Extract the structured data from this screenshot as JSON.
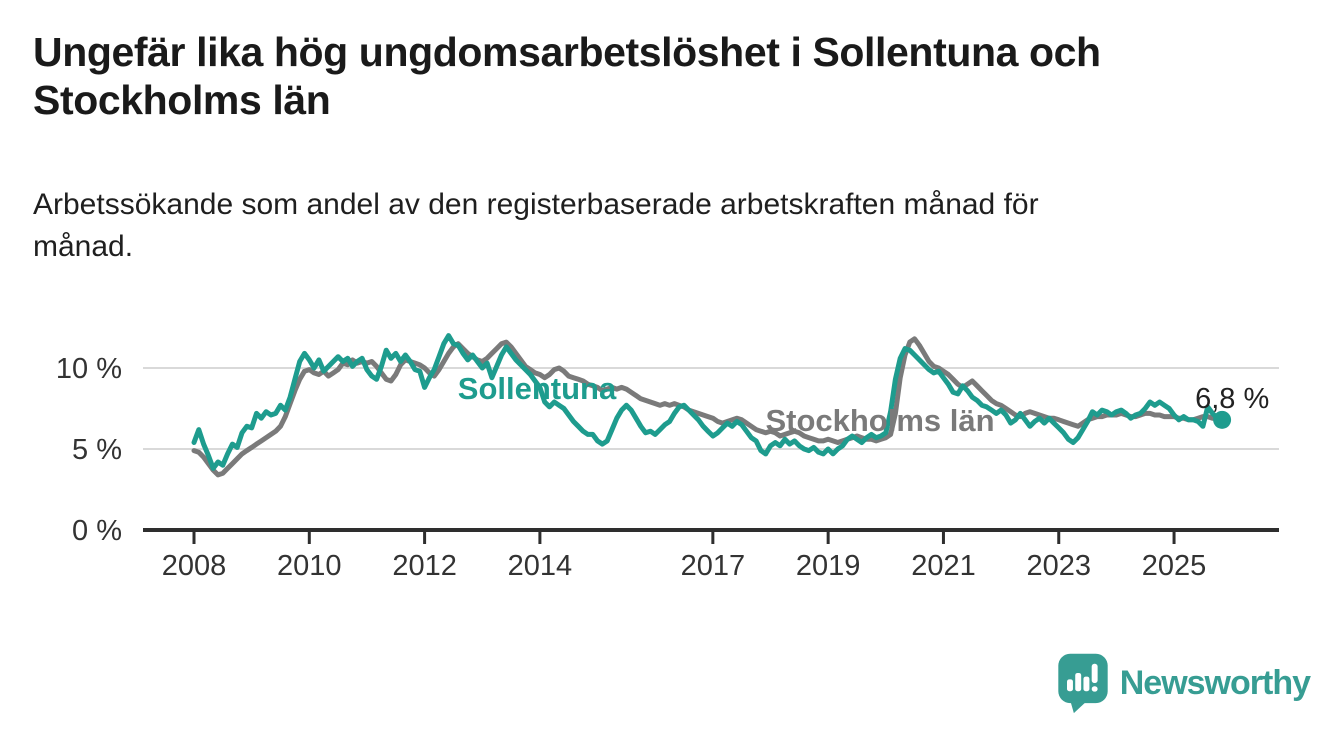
{
  "header": {
    "title": "Ungefär lika hög ungdomsarbetslöshet i Sollentuna och Stockholms län",
    "title_lines": [
      "Ungefär lika hög ungdomsarbetslöshet i Sollentuna och",
      "Stockholms län"
    ],
    "subtitle": "Arbetssökande som andel av den registerbaserade arbetskraften månad för månad.",
    "subtitle_lines": [
      "Arbetssökande som andel av den registerbaserade arbetskraften månad för",
      "månad."
    ]
  },
  "footer": {
    "brand": "Newsworthy"
  },
  "colors": {
    "ink": "#1a1a1a",
    "teal": "#1e9c8e",
    "gray": "#7a7a7a",
    "grid": "#d9d9d9",
    "axis": "#2e2e2e",
    "tick_text": "#333333",
    "annotation_text": "#222222",
    "logo_teal": "#379d93"
  },
  "chart_data": {
    "type": "line",
    "unit": "%",
    "frequency": "monthly",
    "start": "2008-01",
    "end": "2025-11",
    "ylim": [
      0,
      12.5
    ],
    "grid": "horizontal-only",
    "legend_position": "inline-labels",
    "y_ticks": [
      {
        "label": "0 %",
        "value": 0
      },
      {
        "label": "5 %",
        "value": 5
      },
      {
        "label": "10 %",
        "value": 10
      }
    ],
    "x_ticks": [
      "2008",
      "2010",
      "2012",
      "2014",
      "2017",
      "2019",
      "2021",
      "2023",
      "2025"
    ],
    "end_annotation": {
      "label": "6,8 %",
      "value": 6.8,
      "series": "Sollentuna"
    },
    "series": [
      {
        "name": "Sollentuna",
        "color_key": "teal",
        "values": [
          5.4,
          6.2,
          5.3,
          4.6,
          3.8,
          4.2,
          4.0,
          4.7,
          5.3,
          5.1,
          6.0,
          6.4,
          6.3,
          7.2,
          6.9,
          7.3,
          7.1,
          7.2,
          7.7,
          7.4,
          8.2,
          9.3,
          10.4,
          10.9,
          10.5,
          10.0,
          10.5,
          9.8,
          10.1,
          10.4,
          10.7,
          10.4,
          10.6,
          10.1,
          10.4,
          10.6,
          9.9,
          9.5,
          9.3,
          10.1,
          11.1,
          10.6,
          10.9,
          10.4,
          10.8,
          10.4,
          9.9,
          9.8,
          8.8,
          9.4,
          9.9,
          10.7,
          11.5,
          12.0,
          11.5,
          11.4,
          10.9,
          10.5,
          10.8,
          10.4,
          10.0,
          10.3,
          9.4,
          10.1,
          10.8,
          11.3,
          10.9,
          10.5,
          10.2,
          9.9,
          9.6,
          9.2,
          8.8,
          7.9,
          7.6,
          7.9,
          7.7,
          7.5,
          7.1,
          6.7,
          6.4,
          6.1,
          5.9,
          5.9,
          5.5,
          5.3,
          5.5,
          6.2,
          6.9,
          7.4,
          7.7,
          7.4,
          6.9,
          6.4,
          6.0,
          6.1,
          5.9,
          6.2,
          6.5,
          6.7,
          7.2,
          7.6,
          7.7,
          7.4,
          7.1,
          6.8,
          6.4,
          6.1,
          5.8,
          6.0,
          6.3,
          6.6,
          6.4,
          6.7,
          6.5,
          6.1,
          5.7,
          5.5,
          4.9,
          4.7,
          5.2,
          5.4,
          5.2,
          5.6,
          5.3,
          5.5,
          5.2,
          5.0,
          4.9,
          5.1,
          4.8,
          4.7,
          5.0,
          4.7,
          5.0,
          5.2,
          5.6,
          5.8,
          5.6,
          5.4,
          5.7,
          5.9,
          5.7,
          5.8,
          6.0,
          7.3,
          9.3,
          10.6,
          11.2,
          11.1,
          10.8,
          10.5,
          10.2,
          9.9,
          9.7,
          9.8,
          9.4,
          9.0,
          8.5,
          8.4,
          8.9,
          8.6,
          8.2,
          8.0,
          7.7,
          7.6,
          7.4,
          7.2,
          7.4,
          7.1,
          6.6,
          6.8,
          7.2,
          6.8,
          6.4,
          6.7,
          6.9,
          6.6,
          6.9,
          6.6,
          6.3,
          6.0,
          5.6,
          5.4,
          5.7,
          6.2,
          6.7,
          7.3,
          7.1,
          7.4,
          7.3,
          7.1,
          7.3,
          7.4,
          7.2,
          6.9,
          7.1,
          7.2,
          7.5,
          7.9,
          7.7,
          7.9,
          7.7,
          7.5,
          7.1,
          6.8,
          7.0,
          6.8,
          6.8,
          6.7,
          6.4,
          7.6,
          7.2,
          6.9,
          6.8
        ]
      },
      {
        "name": "Stockholms län",
        "color_key": "gray",
        "values": [
          4.9,
          4.8,
          4.5,
          4.1,
          3.7,
          3.4,
          3.5,
          3.8,
          4.1,
          4.4,
          4.7,
          4.9,
          5.1,
          5.3,
          5.5,
          5.7,
          5.9,
          6.1,
          6.4,
          7.0,
          7.8,
          8.6,
          9.3,
          9.8,
          9.9,
          9.7,
          9.6,
          9.8,
          9.5,
          9.7,
          9.9,
          10.3,
          10.2,
          10.5,
          10.3,
          10.4,
          10.3,
          10.4,
          10.1,
          9.7,
          9.3,
          9.2,
          9.6,
          10.2,
          10.5,
          10.4,
          10.3,
          10.2,
          10.0,
          9.7,
          9.5,
          9.9,
          10.4,
          10.9,
          11.3,
          11.5,
          11.2,
          10.9,
          10.7,
          10.5,
          10.4,
          10.6,
          10.9,
          11.2,
          11.5,
          11.6,
          11.3,
          10.9,
          10.5,
          10.1,
          9.9,
          9.7,
          9.6,
          9.4,
          9.6,
          9.9,
          10.0,
          9.8,
          9.5,
          9.4,
          9.3,
          9.2,
          9.0,
          8.9,
          8.8,
          8.6,
          8.7,
          8.8,
          8.7,
          8.8,
          8.7,
          8.5,
          8.3,
          8.1,
          8.0,
          7.9,
          7.8,
          7.7,
          7.8,
          7.7,
          7.8,
          7.7,
          7.6,
          7.4,
          7.3,
          7.2,
          7.1,
          7.0,
          6.9,
          6.7,
          6.6,
          6.7,
          6.8,
          6.9,
          6.8,
          6.6,
          6.4,
          6.2,
          6.1,
          6.0,
          6.1,
          6.0,
          5.8,
          5.9,
          6.0,
          6.1,
          6.0,
          5.8,
          5.7,
          5.6,
          5.5,
          5.5,
          5.6,
          5.5,
          5.4,
          5.5,
          5.6,
          5.7,
          5.8,
          5.7,
          5.6,
          5.6,
          5.5,
          5.6,
          5.7,
          5.9,
          7.2,
          9.4,
          10.8,
          11.6,
          11.8,
          11.4,
          10.9,
          10.4,
          10.1,
          10.0,
          9.8,
          9.6,
          9.3,
          9.0,
          8.8,
          9.0,
          9.2,
          8.9,
          8.6,
          8.3,
          8.0,
          7.8,
          7.7,
          7.5,
          7.3,
          7.1,
          7.0,
          7.2,
          7.3,
          7.2,
          7.1,
          7.0,
          6.9,
          6.9,
          6.8,
          6.7,
          6.6,
          6.5,
          6.4,
          6.6,
          6.8,
          6.9,
          7.0,
          7.0,
          7.1,
          7.1,
          7.1,
          7.2,
          7.1,
          7.0,
          7.0,
          7.1,
          7.2,
          7.2,
          7.1,
          7.1,
          7.0,
          7.0,
          7.0,
          6.9,
          6.9,
          6.8,
          6.8,
          6.9,
          7.0,
          7.0,
          6.9,
          6.9,
          6.8
        ]
      }
    ]
  }
}
